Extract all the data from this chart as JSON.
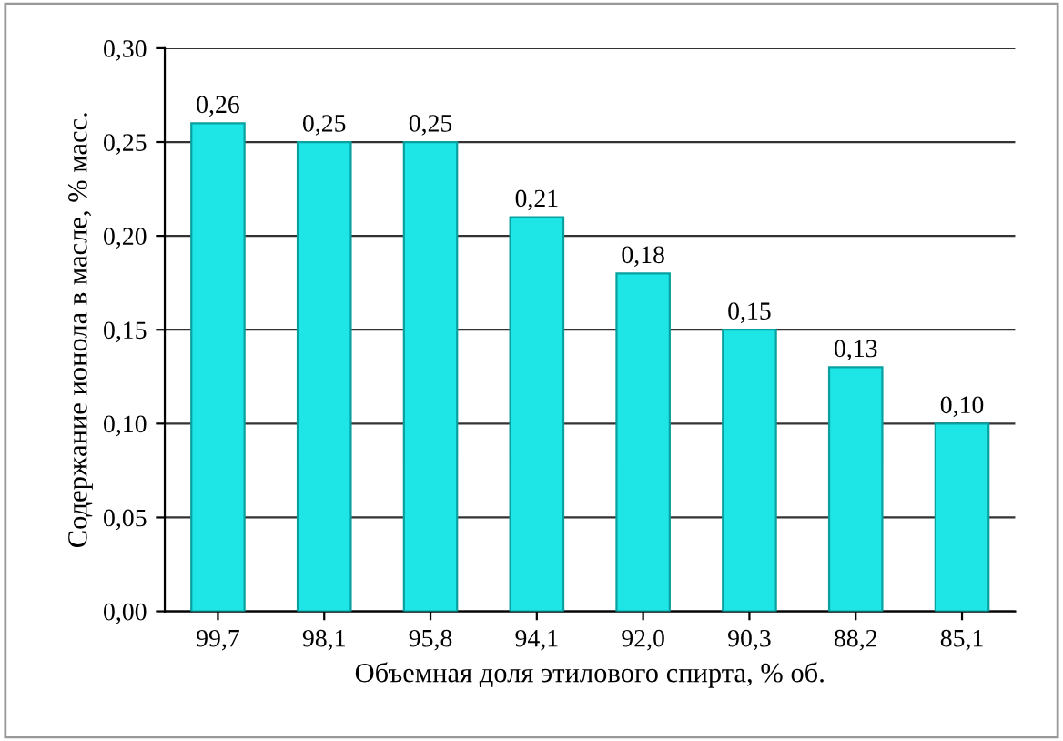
{
  "chart_data": {
    "type": "bar",
    "xlabel": "Объемная доля этилового спирта, % об.",
    "ylabel": "Содержание ионола в масле, % масс.",
    "categories": [
      "99,7",
      "98,1",
      "95,8",
      "94,1",
      "92,0",
      "90,3",
      "88,2",
      "85,1"
    ],
    "values": [
      0.26,
      0.25,
      0.25,
      0.21,
      0.18,
      0.15,
      0.13,
      0.1
    ],
    "value_labels": [
      "0,26",
      "0,25",
      "0,25",
      "0,21",
      "0,18",
      "0,15",
      "0,13",
      "0,10"
    ],
    "color": "#1ee6e6",
    "ylim": [
      0,
      0.3
    ],
    "yticks": [
      {
        "value": 0,
        "label": "0,00"
      },
      {
        "value": 0.05,
        "label": "0,05"
      },
      {
        "value": 0.1,
        "label": "0,10"
      },
      {
        "value": 0.15,
        "label": "0,15"
      },
      {
        "value": 0.2,
        "label": "0,20"
      },
      {
        "value": 0.25,
        "label": "0,25"
      },
      {
        "value": 0.3,
        "label": "0,30"
      }
    ],
    "grid": "y"
  }
}
